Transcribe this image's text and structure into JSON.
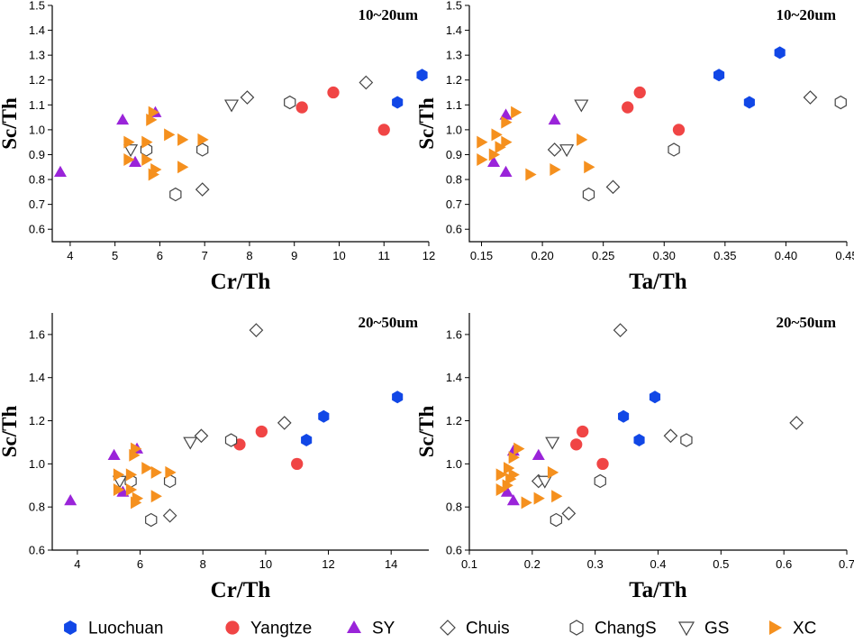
{
  "colors": {
    "Luochuan": "#1147e6",
    "Yangtze": "#f04545",
    "SY": "#9a24d9",
    "Chuis": "#444444",
    "ChangS": "#444444",
    "GS": "#444444",
    "XC": "#f5901e"
  },
  "legend": [
    {
      "name": "Luochuan",
      "marker": "hexagon-filled"
    },
    {
      "name": "Yangtze",
      "marker": "circle-filled"
    },
    {
      "name": "SY",
      "marker": "triangle-up-filled"
    },
    {
      "name": "Chuis",
      "marker": "diamond-open"
    },
    {
      "name": "ChangS",
      "marker": "hexagon-open"
    },
    {
      "name": "GS",
      "marker": "triangle-down-open"
    },
    {
      "name": "XC",
      "marker": "triangle-right-filled"
    }
  ],
  "chart_data": [
    {
      "type": "scatter",
      "title": "10~20um",
      "xlabel": "Cr/Th",
      "ylabel": "Sc/Th",
      "xlim": [
        3.6,
        12
      ],
      "ylim": [
        0.55,
        1.5
      ],
      "xticks": [
        "4",
        "5",
        "6",
        "7",
        "8",
        "9",
        "10",
        "11",
        "12"
      ],
      "yticks": [
        "0.6",
        "0.7",
        "0.8",
        "0.9",
        "1.0",
        "1.1",
        "1.2",
        "1.3",
        "1.4",
        "1.5"
      ],
      "xtick_values": [
        4,
        5,
        6,
        7,
        8,
        9,
        10,
        11,
        12
      ],
      "ytick_values": [
        0.6,
        0.7,
        0.8,
        0.9,
        1.0,
        1.1,
        1.2,
        1.3,
        1.4,
        1.5
      ],
      "series": [
        {
          "name": "Luochuan",
          "points": [
            [
              11.85,
              1.22
            ],
            [
              11.3,
              1.11
            ]
          ]
        },
        {
          "name": "Yangtze",
          "points": [
            [
              9.87,
              1.15
            ],
            [
              9.17,
              1.09
            ],
            [
              11.0,
              1.0
            ]
          ]
        },
        {
          "name": "SY",
          "points": [
            [
              5.17,
              1.04
            ],
            [
              5.9,
              1.07
            ],
            [
              5.45,
              0.87
            ],
            [
              3.78,
              0.83
            ]
          ]
        },
        {
          "name": "Chuis",
          "points": [
            [
              7.95,
              1.13
            ],
            [
              10.6,
              1.19
            ],
            [
              6.95,
              0.76
            ]
          ]
        },
        {
          "name": "ChangS",
          "points": [
            [
              8.9,
              1.11
            ],
            [
              6.95,
              0.92
            ],
            [
              6.35,
              0.74
            ],
            [
              5.7,
              0.92
            ]
          ]
        },
        {
          "name": "GS",
          "points": [
            [
              7.6,
              1.1
            ],
            [
              5.35,
              0.92
            ]
          ]
        },
        {
          "name": "XC",
          "points": [
            [
              5.85,
              1.07
            ],
            [
              5.8,
              1.04
            ],
            [
              5.3,
              0.95
            ],
            [
              5.7,
              0.95
            ],
            [
              6.2,
              0.98
            ],
            [
              6.5,
              0.96
            ],
            [
              5.3,
              0.88
            ],
            [
              5.7,
              0.88
            ],
            [
              5.9,
              0.84
            ],
            [
              5.85,
              0.82
            ],
            [
              6.5,
              0.85
            ],
            [
              6.95,
              0.96
            ]
          ]
        }
      ]
    },
    {
      "type": "scatter",
      "title": "10~20um",
      "xlabel": "Ta/Th",
      "ylabel": "Sc/Th",
      "xlim": [
        0.14,
        0.45
      ],
      "ylim": [
        0.55,
        1.5
      ],
      "xticks": [
        "0.15",
        "0.20",
        "0.25",
        "0.30",
        "0.35",
        "0.40",
        "0.45"
      ],
      "yticks": [
        "0.6",
        "0.7",
        "0.8",
        "0.9",
        "1.0",
        "1.1",
        "1.2",
        "1.3",
        "1.4",
        "1.5"
      ],
      "xtick_values": [
        0.15,
        0.2,
        0.25,
        0.3,
        0.35,
        0.4,
        0.45
      ],
      "ytick_values": [
        0.6,
        0.7,
        0.8,
        0.9,
        1.0,
        1.1,
        1.2,
        1.3,
        1.4,
        1.5
      ],
      "series": [
        {
          "name": "Luochuan",
          "points": [
            [
              0.395,
              1.31
            ],
            [
              0.345,
              1.22
            ],
            [
              0.37,
              1.11
            ]
          ]
        },
        {
          "name": "Yangtze",
          "points": [
            [
              0.28,
              1.15
            ],
            [
              0.27,
              1.09
            ],
            [
              0.312,
              1.0
            ]
          ]
        },
        {
          "name": "SY",
          "points": [
            [
              0.17,
              1.06
            ],
            [
              0.21,
              1.04
            ],
            [
              0.16,
              0.87
            ],
            [
              0.17,
              0.83
            ]
          ]
        },
        {
          "name": "Chuis",
          "points": [
            [
              0.42,
              1.13
            ],
            [
              0.21,
              0.92
            ],
            [
              0.258,
              0.77
            ]
          ]
        },
        {
          "name": "ChangS",
          "points": [
            [
              0.445,
              1.11
            ],
            [
              0.308,
              0.92
            ],
            [
              0.238,
              0.74
            ]
          ]
        },
        {
          "name": "GS",
          "points": [
            [
              0.232,
              1.1
            ],
            [
              0.22,
              0.92
            ]
          ]
        },
        {
          "name": "XC",
          "points": [
            [
              0.178,
              1.07
            ],
            [
              0.17,
              1.03
            ],
            [
              0.15,
              0.95
            ],
            [
              0.162,
              0.98
            ],
            [
              0.17,
              0.95
            ],
            [
              0.15,
              0.88
            ],
            [
              0.16,
              0.9
            ],
            [
              0.232,
              0.96
            ],
            [
              0.238,
              0.85
            ],
            [
              0.19,
              0.82
            ],
            [
              0.21,
              0.84
            ],
            [
              0.165,
              0.93
            ]
          ]
        }
      ]
    },
    {
      "type": "scatter",
      "title": "20~50um",
      "xlabel": "Cr/Th",
      "ylabel": "Sc/Th",
      "xlim": [
        3.2,
        15.2
      ],
      "ylim": [
        0.6,
        1.7
      ],
      "xticks": [
        "4",
        "6",
        "8",
        "10",
        "12",
        "14"
      ],
      "yticks": [
        "0.6",
        "0.8",
        "1.0",
        "1.2",
        "1.4",
        "1.6"
      ],
      "xtick_values": [
        4,
        6,
        8,
        10,
        12,
        14
      ],
      "ytick_values": [
        0.6,
        0.8,
        1.0,
        1.2,
        1.4,
        1.6
      ],
      "series": [
        {
          "name": "Luochuan",
          "points": [
            [
              14.2,
              1.31
            ],
            [
              11.85,
              1.22
            ],
            [
              11.3,
              1.11
            ]
          ]
        },
        {
          "name": "Yangtze",
          "points": [
            [
              9.87,
              1.15
            ],
            [
              9.17,
              1.09
            ],
            [
              11.0,
              1.0
            ]
          ]
        },
        {
          "name": "SY",
          "points": [
            [
              5.17,
              1.04
            ],
            [
              5.9,
              1.07
            ],
            [
              5.45,
              0.87
            ],
            [
              3.78,
              0.83
            ]
          ]
        },
        {
          "name": "Chuis",
          "points": [
            [
              9.7,
              1.62
            ],
            [
              7.95,
              1.13
            ],
            [
              10.6,
              1.19
            ],
            [
              6.95,
              0.76
            ]
          ]
        },
        {
          "name": "ChangS",
          "points": [
            [
              8.9,
              1.11
            ],
            [
              6.95,
              0.92
            ],
            [
              6.35,
              0.74
            ],
            [
              5.7,
              0.92
            ]
          ]
        },
        {
          "name": "GS",
          "points": [
            [
              7.6,
              1.1
            ],
            [
              5.35,
              0.92
            ]
          ]
        },
        {
          "name": "XC",
          "points": [
            [
              5.85,
              1.07
            ],
            [
              5.8,
              1.04
            ],
            [
              5.3,
              0.95
            ],
            [
              5.7,
              0.95
            ],
            [
              6.2,
              0.98
            ],
            [
              6.5,
              0.96
            ],
            [
              5.3,
              0.88
            ],
            [
              5.7,
              0.88
            ],
            [
              5.9,
              0.84
            ],
            [
              5.85,
              0.82
            ],
            [
              6.5,
              0.85
            ],
            [
              6.95,
              0.96
            ]
          ]
        }
      ]
    },
    {
      "type": "scatter",
      "title": "20~50um",
      "xlabel": "Ta/Th",
      "ylabel": "Sc/Th",
      "xlim": [
        0.1,
        0.7
      ],
      "ylim": [
        0.6,
        1.7
      ],
      "xticks": [
        "0.1",
        "0.2",
        "0.3",
        "0.4",
        "0.5",
        "0.6",
        "0.7"
      ],
      "yticks": [
        "0.6",
        "0.8",
        "1.0",
        "1.2",
        "1.4",
        "1.6"
      ],
      "xtick_values": [
        0.1,
        0.2,
        0.3,
        0.4,
        0.5,
        0.6,
        0.7
      ],
      "ytick_values": [
        0.6,
        0.8,
        1.0,
        1.2,
        1.4,
        1.6
      ],
      "series": [
        {
          "name": "Luochuan",
          "points": [
            [
              0.395,
              1.31
            ],
            [
              0.345,
              1.22
            ],
            [
              0.37,
              1.11
            ]
          ]
        },
        {
          "name": "Yangtze",
          "points": [
            [
              0.28,
              1.15
            ],
            [
              0.27,
              1.09
            ],
            [
              0.312,
              1.0
            ]
          ]
        },
        {
          "name": "SY",
          "points": [
            [
              0.17,
              1.06
            ],
            [
              0.21,
              1.04
            ],
            [
              0.16,
              0.87
            ],
            [
              0.17,
              0.83
            ]
          ]
        },
        {
          "name": "Chuis",
          "points": [
            [
              0.34,
              1.62
            ],
            [
              0.42,
              1.13
            ],
            [
              0.62,
              1.19
            ],
            [
              0.21,
              0.92
            ],
            [
              0.258,
              0.77
            ]
          ]
        },
        {
          "name": "ChangS",
          "points": [
            [
              0.445,
              1.11
            ],
            [
              0.308,
              0.92
            ],
            [
              0.238,
              0.74
            ]
          ]
        },
        {
          "name": "GS",
          "points": [
            [
              0.232,
              1.1
            ],
            [
              0.22,
              0.92
            ]
          ]
        },
        {
          "name": "XC",
          "points": [
            [
              0.178,
              1.07
            ],
            [
              0.17,
              1.03
            ],
            [
              0.15,
              0.95
            ],
            [
              0.162,
              0.98
            ],
            [
              0.17,
              0.95
            ],
            [
              0.15,
              0.88
            ],
            [
              0.16,
              0.9
            ],
            [
              0.232,
              0.96
            ],
            [
              0.238,
              0.85
            ],
            [
              0.19,
              0.82
            ],
            [
              0.21,
              0.84
            ],
            [
              0.165,
              0.93
            ]
          ]
        }
      ]
    }
  ]
}
